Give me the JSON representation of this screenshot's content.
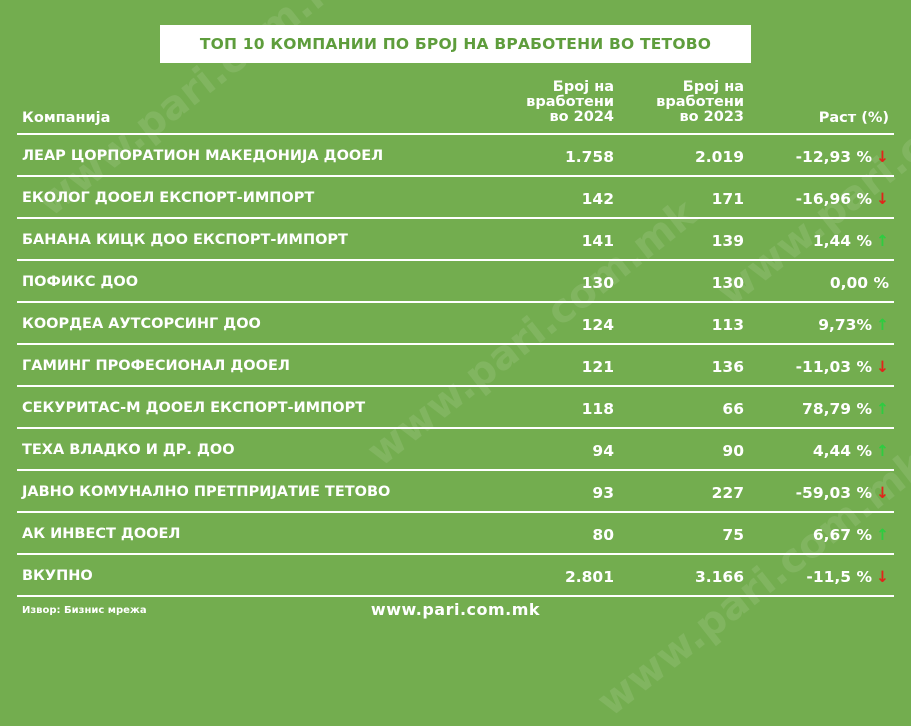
{
  "title": "ТОП 10 КОМПАНИИ ПО БРОЈ НА ВРАБОТЕНИ ВО ТЕТОВО",
  "headers": {
    "company": "Компанија",
    "col2024": [
      "Број на",
      "вработени",
      "во 2024"
    ],
    "col2023": [
      "Број на",
      "вработени",
      "во 2023"
    ],
    "growth": "Раст (%)"
  },
  "chart_data": {
    "type": "table",
    "columns": [
      "Компанија",
      "Број на вработени во 2024",
      "Број на вработени во 2023",
      "Раст (%)"
    ],
    "rows": [
      {
        "company": "ЛЕАР ЦОРПОРАТИОН МАКЕДОНИЈА ДООЕЛ",
        "y2024": "1.758",
        "y2023": "2.019",
        "growth": "-12,93 %",
        "trend": "down"
      },
      {
        "company": "ЕКОЛОГ ДООЕЛ ЕКСПОРТ-ИМПОРТ",
        "y2024": "142",
        "y2023": "171",
        "growth": "-16,96 %",
        "trend": "down"
      },
      {
        "company": "БАНАНА КИЦК ДОО ЕКСПОРТ-ИМПОРТ",
        "y2024": "141",
        "y2023": "139",
        "growth": "1,44 %",
        "trend": "up"
      },
      {
        "company": "ПОФИКС ДОО",
        "y2024": "130",
        "y2023": "130",
        "growth": "0,00 %",
        "trend": "none"
      },
      {
        "company": "КООРДЕА АУТСОРСИНГ ДОО",
        "y2024": "124",
        "y2023": "113",
        "growth": "9,73%",
        "trend": "up"
      },
      {
        "company": "ГАМИНГ ПРОФЕСИОНАЛ ДООЕЛ",
        "y2024": "121",
        "y2023": "136",
        "growth": "-11,03 %",
        "trend": "down"
      },
      {
        "company": "СЕКУРИТАС-М ДООЕЛ ЕКСПОРТ-ИМПОРТ",
        "y2024": "118",
        "y2023": "66",
        "growth": "78,79 %",
        "trend": "up"
      },
      {
        "company": "ТЕХА ВЛАДКО И ДР. ДОО",
        "y2024": "94",
        "y2023": "90",
        "growth": "4,44 %",
        "trend": "up"
      },
      {
        "company": "ЈАВНО КОМУНАЛНО ПРЕТПРИЈАТИЕ ТЕТОВО",
        "y2024": "93",
        "y2023": "227",
        "growth": "-59,03 %",
        "trend": "down"
      },
      {
        "company": "АК ИНВЕСТ ДООЕЛ",
        "y2024": "80",
        "y2023": "75",
        "growth": "6,67 %",
        "trend": "up"
      }
    ],
    "total": {
      "company": "ВКУПНО",
      "y2024": "2.801",
      "y2023": "3.166",
      "growth": "-11,5 %",
      "trend": "down"
    }
  },
  "arrows": {
    "down": "↓",
    "up": "↑"
  },
  "colors": {
    "background": "#73ad4f",
    "title_text": "#5e9d3c",
    "arrow_down": "#e2231a",
    "arrow_up": "#2ecc40"
  },
  "footer": {
    "source": "Извор: Бизнис мрежа",
    "site": "www.pari.com.mk"
  },
  "watermark": "www.pari.com.mk"
}
